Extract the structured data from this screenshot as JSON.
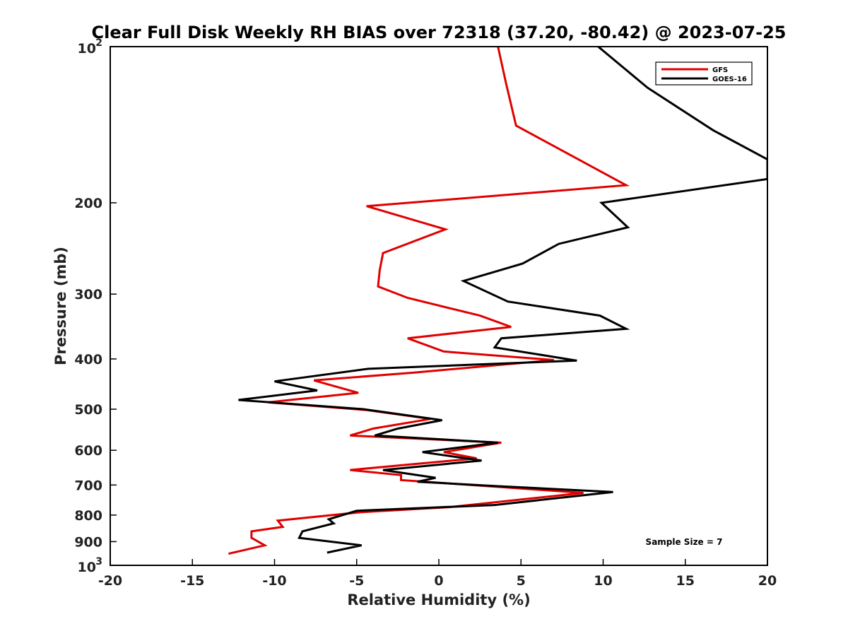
{
  "chart_data": {
    "type": "line",
    "title": "Clear Full Disk Weekly RH BIAS over 72318 (37.20, -80.42) @ 2023-07-25",
    "xlabel": "Relative Humidity (%)",
    "ylabel": "Pressure (mb)",
    "xlim": [
      -20,
      20
    ],
    "ylim": [
      100,
      1000
    ],
    "yscale": "log",
    "y_reversed": true,
    "grid": false,
    "legend_position": "top-right",
    "annotation": "Sample Size = 7",
    "x_ticks": [
      "-20",
      "-15",
      "-10",
      "-5",
      "0",
      "5",
      "10",
      "15",
      "20"
    ],
    "y_ticks": [
      {
        "value": 100,
        "base": "10",
        "exp": "2"
      },
      {
        "value": 200,
        "label": "200"
      },
      {
        "value": 300,
        "label": "300"
      },
      {
        "value": 400,
        "label": "400"
      },
      {
        "value": 500,
        "label": "500"
      },
      {
        "value": 600,
        "label": "600"
      },
      {
        "value": 700,
        "label": "700"
      },
      {
        "value": 800,
        "label": "800"
      },
      {
        "value": 900,
        "label": "900"
      },
      {
        "value": 1000,
        "base": "10",
        "exp": "3"
      }
    ],
    "series": [
      {
        "name": "GFS",
        "color": "#e00000",
        "points": [
          [
            3.6,
            100
          ],
          [
            4.1,
            118
          ],
          [
            4.7,
            142
          ],
          [
            11.4,
            185
          ],
          [
            -4.4,
            203
          ],
          [
            0.4,
            225
          ],
          [
            -3.4,
            250
          ],
          [
            -3.6,
            270
          ],
          [
            -3.7,
            290
          ],
          [
            -1.9,
            305
          ],
          [
            2.5,
            330
          ],
          [
            4.4,
            347
          ],
          [
            -1.9,
            365
          ],
          [
            0.3,
            387
          ],
          [
            7.0,
            402
          ],
          [
            -1.5,
            425
          ],
          [
            -7.6,
            440
          ],
          [
            -4.9,
            465
          ],
          [
            -10.4,
            485
          ],
          [
            -4.4,
            502
          ],
          [
            -0.5,
            522
          ],
          [
            -4.0,
            545
          ],
          [
            -5.4,
            562
          ],
          [
            3.8,
            580
          ],
          [
            0.3,
            605
          ],
          [
            2.3,
            622
          ],
          [
            -5.4,
            655
          ],
          [
            -2.3,
            670
          ],
          [
            -2.3,
            685
          ],
          [
            3.4,
            705
          ],
          [
            8.8,
            725
          ],
          [
            0.7,
            772
          ],
          [
            -4.8,
            790
          ],
          [
            -9.8,
            820
          ],
          [
            -9.5,
            843
          ],
          [
            -11.4,
            860
          ],
          [
            -11.4,
            885
          ],
          [
            -10.6,
            915
          ],
          [
            -12.8,
            950
          ]
        ]
      },
      {
        "name": "GOES-16",
        "color": "#000000",
        "points": [
          [
            9.7,
            100
          ],
          [
            12.7,
            120
          ],
          [
            16.7,
            145
          ],
          [
            20.0,
            165
          ],
          [
            20.0,
            180
          ],
          [
            9.9,
            200
          ],
          [
            11.5,
            223
          ],
          [
            7.3,
            240
          ],
          [
            5.1,
            262
          ],
          [
            1.5,
            283
          ],
          [
            4.2,
            310
          ],
          [
            9.8,
            330
          ],
          [
            11.4,
            350
          ],
          [
            3.8,
            365
          ],
          [
            3.4,
            380
          ],
          [
            8.4,
            403
          ],
          [
            -4.3,
            418
          ],
          [
            -10.0,
            442
          ],
          [
            -7.4,
            460
          ],
          [
            -12.2,
            480
          ],
          [
            -4.6,
            500
          ],
          [
            0.2,
            525
          ],
          [
            -2.5,
            545
          ],
          [
            -3.9,
            562
          ],
          [
            3.6,
            580
          ],
          [
            -1.0,
            605
          ],
          [
            2.6,
            628
          ],
          [
            -3.4,
            655
          ],
          [
            -0.2,
            678
          ],
          [
            -1.3,
            690
          ],
          [
            3.4,
            703
          ],
          [
            10.6,
            722
          ],
          [
            3.4,
            765
          ],
          [
            -5.0,
            785
          ],
          [
            -6.7,
            815
          ],
          [
            -6.4,
            830
          ],
          [
            -8.3,
            860
          ],
          [
            -8.5,
            885
          ],
          [
            -4.7,
            915
          ],
          [
            -6.8,
            945
          ]
        ]
      }
    ]
  }
}
